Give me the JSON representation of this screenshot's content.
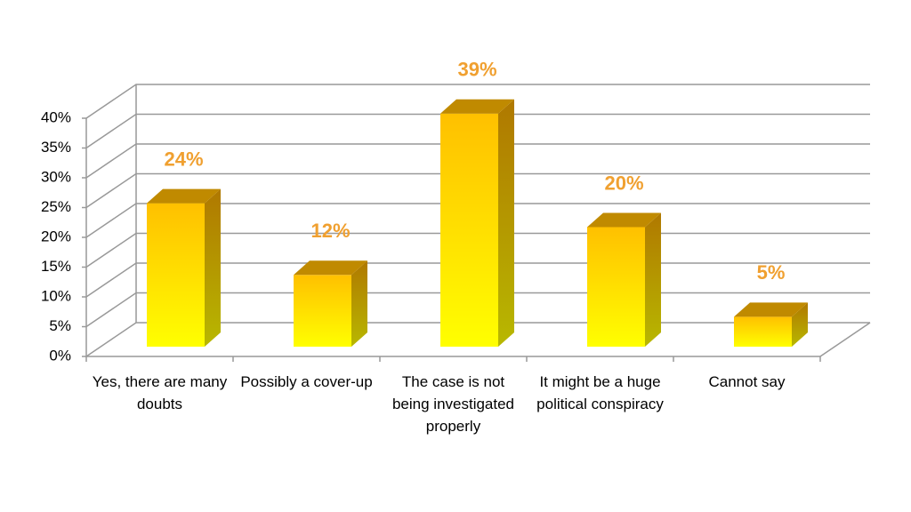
{
  "chart_data": {
    "type": "bar3d",
    "categories": [
      "Yes, there are many doubts",
      "Possibly a cover-up",
      "The case is not being investigated properly",
      "It might be a huge political conspiracy",
      "Cannot say"
    ],
    "values": [
      24,
      12,
      39,
      20,
      5
    ],
    "value_labels": [
      "24%",
      "12%",
      "39%",
      "20%",
      "5%"
    ],
    "color": "#ffc000",
    "label_color": "#f0a030",
    "ylim": [
      0,
      40
    ],
    "yticks": [
      {
        "value": 0,
        "label": "0%"
      },
      {
        "value": 5,
        "label": "5%"
      },
      {
        "value": 10,
        "label": "10%"
      },
      {
        "value": 15,
        "label": "15%"
      },
      {
        "value": 20,
        "label": "20%"
      },
      {
        "value": 25,
        "label": "25%"
      },
      {
        "value": 30,
        "label": "30%"
      },
      {
        "value": 35,
        "label": "35%"
      },
      {
        "value": 40,
        "label": "40%"
      }
    ],
    "grid": true
  }
}
